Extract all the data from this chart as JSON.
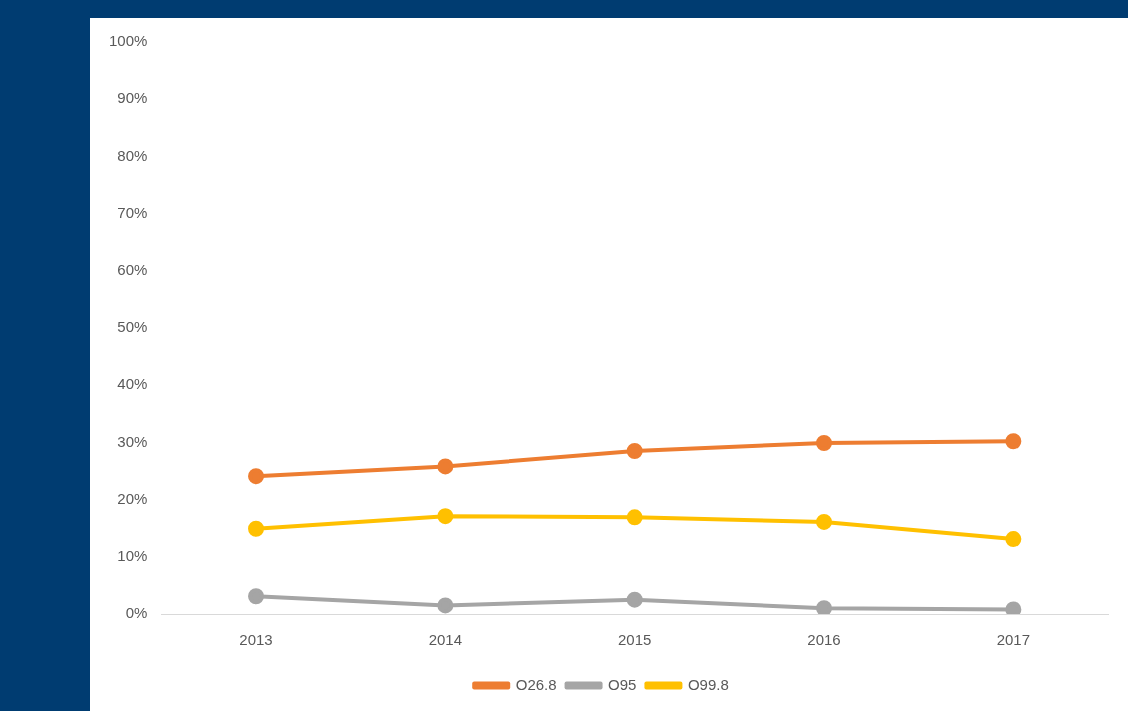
{
  "chart_data": {
    "type": "line",
    "categories": [
      "2013",
      "2014",
      "2015",
      "2016",
      "2017"
    ],
    "series": [
      {
        "name": "O26.8",
        "color": "#ed7d31",
        "values": [
          24.1,
          25.8,
          28.5,
          29.9,
          30.2
        ]
      },
      {
        "name": "O95",
        "color": "#a5a5a5",
        "values": [
          3.1,
          1.5,
          2.5,
          1.0,
          0.8
        ]
      },
      {
        "name": "O99.8",
        "color": "#ffc000",
        "values": [
          14.9,
          17.1,
          16.9,
          16.1,
          13.1
        ]
      }
    ],
    "ylim": [
      0,
      100
    ],
    "yticks": [
      {
        "value": 0,
        "label": "0%"
      },
      {
        "value": 10,
        "label": "10%"
      },
      {
        "value": 20,
        "label": "20%"
      },
      {
        "value": 30,
        "label": "30%"
      },
      {
        "value": 40,
        "label": "40%"
      },
      {
        "value": 50,
        "label": "50%"
      },
      {
        "value": 60,
        "label": "60%"
      },
      {
        "value": 70,
        "label": "70%"
      },
      {
        "value": 80,
        "label": "80%"
      },
      {
        "value": 90,
        "label": "90%"
      },
      {
        "value": 100,
        "label": "100%"
      }
    ],
    "grid": false,
    "legend": "bottom",
    "marker": "circle",
    "line_style": "solid"
  }
}
